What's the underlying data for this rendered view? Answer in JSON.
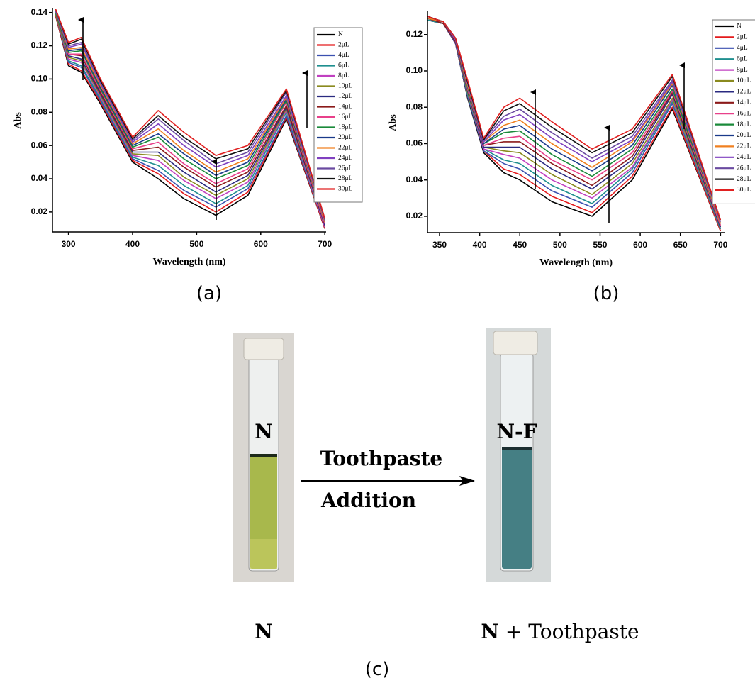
{
  "chart_data": [
    {
      "type": "line",
      "panel_label": "(a)",
      "x_label": "Wavelength (nm)",
      "y_label": "Abs",
      "x": [
        280,
        300,
        320,
        350,
        400,
        440,
        480,
        530,
        580,
        640,
        700
      ],
      "xlim": [
        275,
        702
      ],
      "xticks": [
        300,
        400,
        500,
        600,
        700
      ],
      "ylim": [
        0.008,
        0.142
      ],
      "yticks": [
        0.02,
        0.04,
        0.06,
        0.08,
        {
          "value": 0.1,
          "label": "0.10"
        },
        0.12,
        0.14
      ],
      "series": [
        {
          "name": "N",
          "color": "#000000",
          "values": [
            0.138,
            0.108,
            0.104,
            0.085,
            0.05,
            0.04,
            0.028,
            0.018,
            0.03,
            0.076,
            0.01
          ]
        },
        {
          "name": "2μL",
          "color": "#e41a1c",
          "values": [
            0.138,
            0.109,
            0.105,
            0.086,
            0.051,
            0.043,
            0.031,
            0.02,
            0.032,
            0.077,
            0.01
          ]
        },
        {
          "name": "4μL",
          "color": "#3b50b0",
          "values": [
            0.139,
            0.11,
            0.107,
            0.087,
            0.052,
            0.045,
            0.033,
            0.023,
            0.034,
            0.078,
            0.011
          ]
        },
        {
          "name": "6μL",
          "color": "#1f8f8f",
          "values": [
            0.139,
            0.111,
            0.108,
            0.088,
            0.053,
            0.048,
            0.036,
            0.025,
            0.036,
            0.08,
            0.011
          ]
        },
        {
          "name": "8μL",
          "color": "#c040c0",
          "values": [
            0.139,
            0.112,
            0.11,
            0.089,
            0.054,
            0.051,
            0.039,
            0.028,
            0.038,
            0.081,
            0.011
          ]
        },
        {
          "name": "10μL",
          "color": "#8a8a1f",
          "values": [
            0.139,
            0.113,
            0.111,
            0.09,
            0.055,
            0.054,
            0.041,
            0.03,
            0.04,
            0.082,
            0.012
          ]
        },
        {
          "name": "12μL",
          "color": "#2a2a80",
          "values": [
            0.14,
            0.114,
            0.112,
            0.091,
            0.056,
            0.056,
            0.044,
            0.032,
            0.042,
            0.083,
            0.012
          ]
        },
        {
          "name": "14μL",
          "color": "#8b1a1a",
          "values": [
            0.14,
            0.115,
            0.114,
            0.092,
            0.057,
            0.059,
            0.047,
            0.035,
            0.044,
            0.084,
            0.013
          ]
        },
        {
          "name": "16μL",
          "color": "#e8408a",
          "values": [
            0.14,
            0.115,
            0.115,
            0.093,
            0.058,
            0.062,
            0.049,
            0.037,
            0.046,
            0.086,
            0.013
          ]
        },
        {
          "name": "18μL",
          "color": "#1a8a3a",
          "values": [
            0.14,
            0.116,
            0.117,
            0.094,
            0.059,
            0.065,
            0.052,
            0.04,
            0.048,
            0.087,
            0.014
          ]
        },
        {
          "name": "20μL",
          "color": "#1a3a8a",
          "values": [
            0.141,
            0.117,
            0.118,
            0.095,
            0.06,
            0.067,
            0.055,
            0.042,
            0.05,
            0.088,
            0.014
          ]
        },
        {
          "name": "22μL",
          "color": "#f08020",
          "values": [
            0.141,
            0.118,
            0.119,
            0.096,
            0.061,
            0.07,
            0.057,
            0.044,
            0.052,
            0.089,
            0.014
          ]
        },
        {
          "name": "24μL",
          "color": "#8040c0",
          "values": [
            0.141,
            0.119,
            0.121,
            0.097,
            0.062,
            0.073,
            0.06,
            0.047,
            0.054,
            0.09,
            0.015
          ]
        },
        {
          "name": "26μL",
          "color": "#6a4aa0",
          "values": [
            0.141,
            0.12,
            0.122,
            0.098,
            0.063,
            0.076,
            0.063,
            0.049,
            0.056,
            0.092,
            0.015
          ]
        },
        {
          "name": "28μL",
          "color": "#111111",
          "values": [
            0.142,
            0.121,
            0.124,
            0.099,
            0.064,
            0.078,
            0.065,
            0.052,
            0.058,
            0.093,
            0.016
          ]
        },
        {
          "name": "30μL",
          "color": "#e02020",
          "values": [
            0.142,
            0.122,
            0.125,
            0.1,
            0.065,
            0.081,
            0.068,
            0.054,
            0.06,
            0.094,
            0.016
          ]
        }
      ]
    },
    {
      "type": "line",
      "panel_label": "(b)",
      "x_label": "Wavelength (nm)",
      "y_label": "Abs",
      "x": [
        335,
        355,
        370,
        385,
        405,
        430,
        450,
        490,
        540,
        590,
        640,
        700
      ],
      "xlim": [
        335,
        705
      ],
      "xticks": [
        350,
        400,
        450,
        500,
        550,
        600,
        650,
        700
      ],
      "ylim": [
        0.011,
        0.132
      ],
      "yticks": [
        0.02,
        0.04,
        0.06,
        0.08,
        {
          "value": 0.1,
          "label": "0.10"
        },
        0.12
      ],
      "series": [
        {
          "name": "N",
          "color": "#000000",
          "values": [
            0.128,
            0.126,
            0.115,
            0.085,
            0.055,
            0.044,
            0.04,
            0.028,
            0.02,
            0.04,
            0.079,
            0.012
          ]
        },
        {
          "name": "2μL",
          "color": "#e41a1c",
          "values": [
            0.128,
            0.126,
            0.115,
            0.086,
            0.056,
            0.046,
            0.043,
            0.031,
            0.022,
            0.042,
            0.08,
            0.012
          ]
        },
        {
          "name": "4μL",
          "color": "#3b50b0",
          "values": [
            0.128,
            0.126,
            0.115,
            0.086,
            0.056,
            0.049,
            0.046,
            0.034,
            0.025,
            0.044,
            0.082,
            0.013
          ]
        },
        {
          "name": "6μL",
          "color": "#1f8f8f",
          "values": [
            0.128,
            0.126,
            0.116,
            0.087,
            0.057,
            0.051,
            0.049,
            0.037,
            0.027,
            0.046,
            0.083,
            0.013
          ]
        },
        {
          "name": "8μL",
          "color": "#c040c0",
          "values": [
            0.129,
            0.126,
            0.116,
            0.088,
            0.057,
            0.054,
            0.052,
            0.04,
            0.03,
            0.047,
            0.084,
            0.014
          ]
        },
        {
          "name": "10μL",
          "color": "#8a8a1f",
          "values": [
            0.129,
            0.126,
            0.116,
            0.088,
            0.058,
            0.056,
            0.055,
            0.043,
            0.032,
            0.049,
            0.085,
            0.014
          ]
        },
        {
          "name": "12μL",
          "color": "#2a2a80",
          "values": [
            0.129,
            0.126,
            0.116,
            0.089,
            0.058,
            0.058,
            0.058,
            0.046,
            0.035,
            0.051,
            0.087,
            0.014
          ]
        },
        {
          "name": "14μL",
          "color": "#8b1a1a",
          "values": [
            0.129,
            0.126,
            0.116,
            0.09,
            0.059,
            0.061,
            0.061,
            0.049,
            0.037,
            0.053,
            0.088,
            0.015
          ]
        },
        {
          "name": "16μL",
          "color": "#e8408a",
          "values": [
            0.129,
            0.127,
            0.117,
            0.09,
            0.059,
            0.063,
            0.064,
            0.051,
            0.04,
            0.055,
            0.089,
            0.015
          ]
        },
        {
          "name": "18μL",
          "color": "#1a8a3a",
          "values": [
            0.129,
            0.127,
            0.117,
            0.091,
            0.06,
            0.066,
            0.067,
            0.054,
            0.042,
            0.057,
            0.09,
            0.016
          ]
        },
        {
          "name": "20μL",
          "color": "#1a3a8a",
          "values": [
            0.129,
            0.127,
            0.117,
            0.092,
            0.06,
            0.068,
            0.07,
            0.057,
            0.045,
            0.059,
            0.092,
            0.016
          ]
        },
        {
          "name": "22μL",
          "color": "#f08020",
          "values": [
            0.129,
            0.127,
            0.117,
            0.092,
            0.061,
            0.07,
            0.073,
            0.06,
            0.047,
            0.061,
            0.093,
            0.016
          ]
        },
        {
          "name": "24μL",
          "color": "#8040c0",
          "values": [
            0.13,
            0.127,
            0.117,
            0.093,
            0.061,
            0.073,
            0.076,
            0.063,
            0.05,
            0.062,
            0.094,
            0.017
          ]
        },
        {
          "name": "26μL",
          "color": "#6a4aa0",
          "values": [
            0.13,
            0.127,
            0.118,
            0.094,
            0.062,
            0.075,
            0.079,
            0.066,
            0.052,
            0.064,
            0.095,
            0.017
          ]
        },
        {
          "name": "28μL",
          "color": "#111111",
          "values": [
            0.13,
            0.127,
            0.118,
            0.094,
            0.062,
            0.078,
            0.082,
            0.069,
            0.055,
            0.066,
            0.097,
            0.018
          ]
        },
        {
          "name": "30μL",
          "color": "#e02020",
          "values": [
            0.13,
            0.127,
            0.118,
            0.095,
            0.063,
            0.08,
            0.085,
            0.072,
            0.057,
            0.068,
            0.098,
            0.018
          ]
        }
      ]
    }
  ],
  "panel_c": {
    "left_vial_label": "N",
    "right_vial_label": "N-F",
    "arrow_top": "Toothpaste",
    "arrow_bottom": "Addition",
    "left_caption": "N",
    "right_caption_bold": "N",
    "right_caption_rest": "+ Toothpaste",
    "label": "(c)"
  }
}
